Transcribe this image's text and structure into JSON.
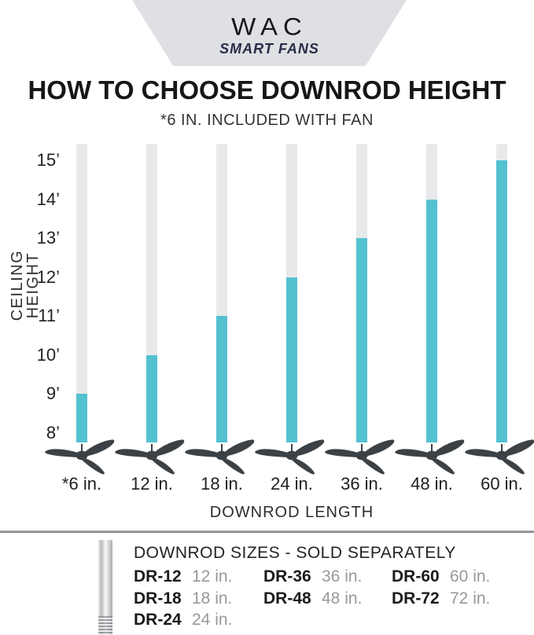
{
  "logo": {
    "brand": "WAC",
    "tagline": "SMART FANS"
  },
  "title": "HOW TO CHOOSE DOWNROD HEIGHT",
  "subtitle": "*6 IN. INCLUDED WITH FAN",
  "chart_data": {
    "type": "bar",
    "title": "HOW TO CHOOSE DOWNROD HEIGHT",
    "subtitle": "*6 IN. INCLUDED WITH FAN",
    "xlabel": "DOWNROD LENGTH",
    "ylabel": "CEILING HEIGHT",
    "categories": [
      "*6 in.",
      "12 in.",
      "18 in.",
      "24 in.",
      "36 in.",
      "48 in.",
      "60 in."
    ],
    "values": [
      9,
      10,
      11,
      12,
      13,
      14,
      15
    ],
    "value_unit": "feet",
    "ytick_labels": [
      "15’",
      "14’",
      "13’",
      "12’",
      "11’",
      "10’",
      "9’",
      "8’"
    ],
    "ytick_values": [
      15,
      14,
      13,
      12,
      11,
      10,
      9,
      8
    ],
    "ylim": [
      7.8,
      15.4
    ],
    "grid": false,
    "legend": "none",
    "bar_color": "#53c1cf",
    "track_color": "#e8e9eb",
    "fan_color": "#3c4145"
  },
  "footer": {
    "title": "DOWNROD SIZES - SOLD SEPARATELY",
    "rod_icon": "downrod-photo",
    "columns": [
      [
        {
          "model": "DR-12",
          "size": "12 in."
        },
        {
          "model": "DR-18",
          "size": "18 in."
        },
        {
          "model": "DR-24",
          "size": "24 in."
        }
      ],
      [
        {
          "model": "DR-36",
          "size": "36 in."
        },
        {
          "model": "DR-48",
          "size": "48 in."
        }
      ],
      [
        {
          "model": "DR-60",
          "size": "60 in."
        },
        {
          "model": "DR-72",
          "size": "72 in."
        }
      ]
    ]
  },
  "colors": {
    "accent_teal": "#53c1cf",
    "bar_track_gray": "#e8e9eb",
    "fan_charcoal": "#3c4145",
    "logo_background": "#dee0e4",
    "logo_navy": "#272e46",
    "muted_text": "#98989d",
    "divider_gray": "#8b8d90"
  }
}
